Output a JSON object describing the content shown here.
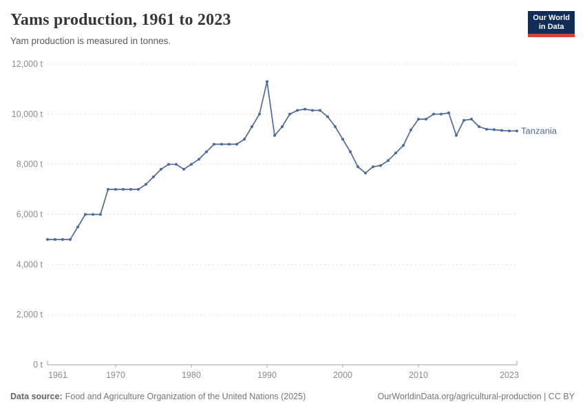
{
  "header": {
    "title": "Yams production, 1961 to 2023",
    "subtitle": "Yam production is measured in tonnes.",
    "logo": {
      "line1": "Our World",
      "line2": "in Data"
    }
  },
  "chart_data": {
    "type": "line",
    "title": "Yams production, 1961 to 2023",
    "subtitle": "Yam production is measured in tonnes.",
    "xlabel": "",
    "ylabel": "",
    "unit": "t",
    "xlim": [
      1961,
      2023
    ],
    "ylim": [
      0,
      12000
    ],
    "grid": "horizontal-dashed",
    "legend_position": "end-of-line-label",
    "x_ticks": [
      1961,
      1970,
      1980,
      1990,
      2000,
      2010,
      2023
    ],
    "x_tick_labels": [
      "1961",
      "1970",
      "1980",
      "1990",
      "2000",
      "2010",
      "2023"
    ],
    "y_ticks": [
      0,
      2000,
      4000,
      6000,
      8000,
      10000,
      12000
    ],
    "y_tick_labels": [
      "0 t",
      "2,000 t",
      "4,000 t",
      "6,000 t",
      "8,000 t",
      "10,000 t",
      "12,000 t"
    ],
    "series": [
      {
        "name": "Tanzania",
        "color": "#4c6a9d",
        "x": [
          1961,
          1962,
          1963,
          1964,
          1965,
          1966,
          1967,
          1968,
          1969,
          1970,
          1971,
          1972,
          1973,
          1974,
          1975,
          1976,
          1977,
          1978,
          1979,
          1980,
          1981,
          1982,
          1983,
          1984,
          1985,
          1986,
          1987,
          1988,
          1989,
          1990,
          1991,
          1992,
          1993,
          1994,
          1995,
          1996,
          1997,
          1998,
          1999,
          2000,
          2001,
          2002,
          2003,
          2004,
          2005,
          2006,
          2007,
          2008,
          2009,
          2010,
          2011,
          2012,
          2013,
          2014,
          2015,
          2016,
          2017,
          2018,
          2019,
          2020,
          2021,
          2022,
          2023
        ],
        "values": [
          5000,
          5000,
          5000,
          5000,
          5500,
          6000,
          6000,
          6000,
          7000,
          7000,
          7000,
          7000,
          7000,
          7200,
          7500,
          7800,
          8000,
          8000,
          7800,
          8000,
          8200,
          8500,
          8800,
          8800,
          8800,
          8800,
          9000,
          9500,
          10000,
          11300,
          9150,
          9500,
          10000,
          10150,
          10200,
          10150,
          10150,
          9900,
          9500,
          9000,
          8500,
          7900,
          7650,
          7900,
          7950,
          8150,
          8450,
          8750,
          9370,
          9800,
          9800,
          10000,
          10000,
          10050,
          9150,
          9750,
          9800,
          9500,
          9400,
          9380,
          9350,
          9330,
          9330
        ]
      }
    ]
  },
  "footer": {
    "datasource_label": "Data source:",
    "datasource": "Food and Agriculture Organization of the United Nations (2025)",
    "link": "OurWorldinData.org/agricultural-production | CC BY"
  },
  "colors": {
    "series_blue": "#4c6a9d",
    "gridline": "#dadada",
    "axis": "#a3a3a3",
    "tick_label": "#8a8a8a",
    "logo_bg": "#102d59",
    "logo_bar": "#d8403a"
  }
}
